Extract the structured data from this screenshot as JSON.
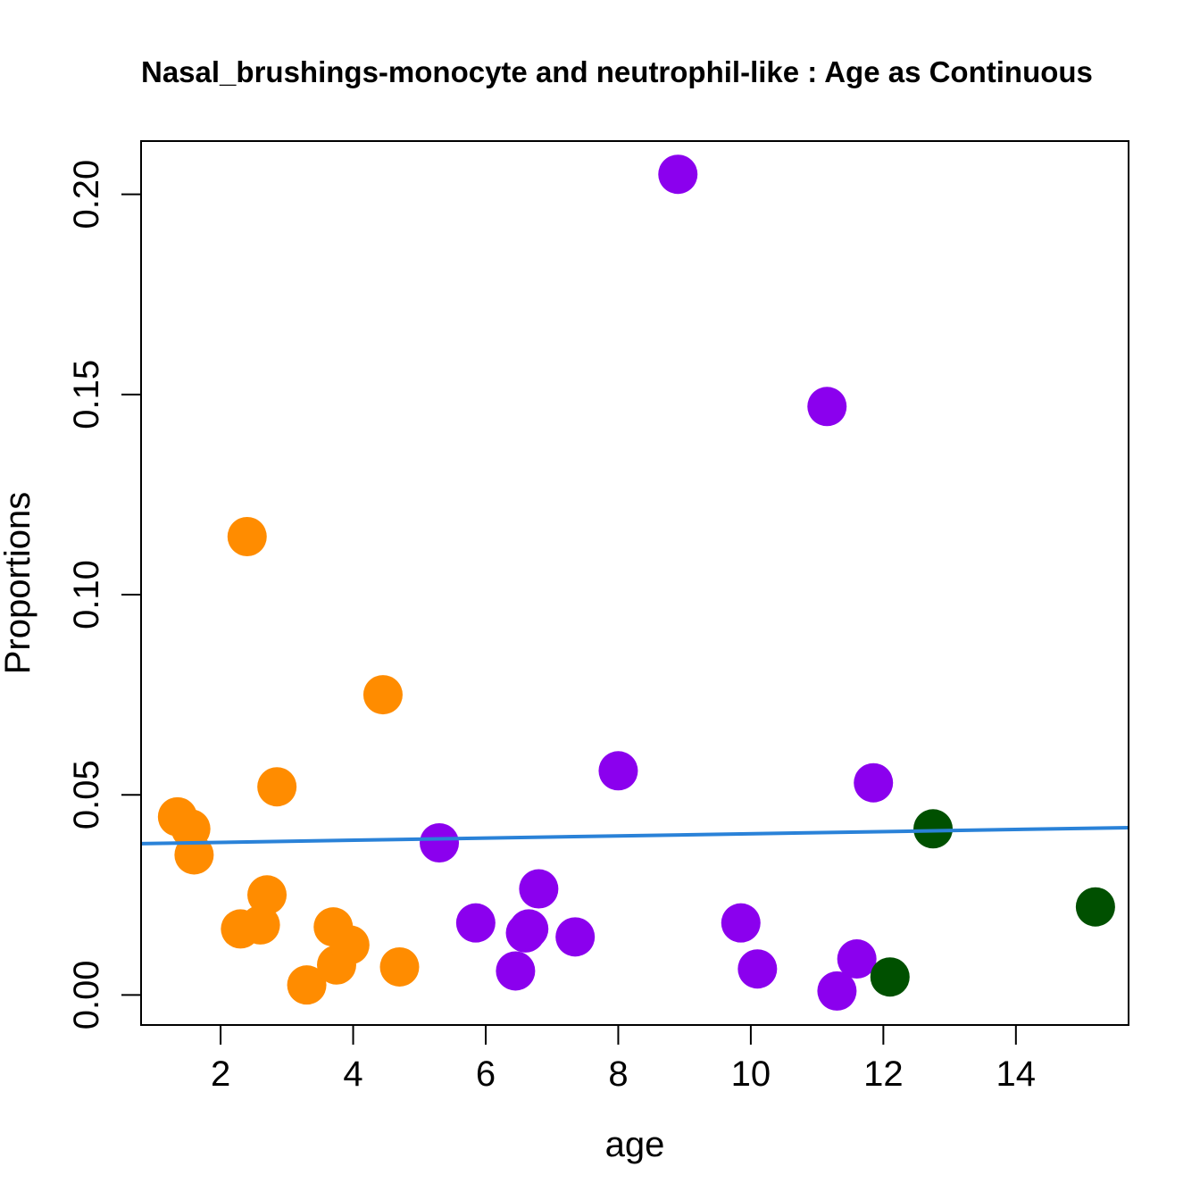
{
  "chart_data": {
    "type": "scatter",
    "title": "Nasal_brushings-monocyte and neutrophil-like : Age as Continuous",
    "xlabel": "age",
    "ylabel": "Proportions",
    "xlim": [
      0.8,
      15.7
    ],
    "ylim": [
      -0.0075,
      0.2133
    ],
    "x_ticks": [
      2,
      4,
      6,
      8,
      10,
      12,
      14
    ],
    "y_ticks": [
      0.0,
      0.05,
      0.1,
      0.15,
      0.2
    ],
    "x_tick_labels": [
      "2",
      "4",
      "6",
      "8",
      "10",
      "12",
      "14"
    ],
    "y_tick_labels": [
      "0.00",
      "0.05",
      "0.10",
      "0.15",
      "0.20"
    ],
    "grid": false,
    "legend": "none",
    "series": [
      {
        "color": "#ff8c00",
        "points": [
          [
            1.35,
            0.0445
          ],
          [
            1.55,
            0.0415
          ],
          [
            1.6,
            0.035
          ],
          [
            2.3,
            0.0165
          ],
          [
            2.4,
            0.1145
          ],
          [
            2.6,
            0.0175
          ],
          [
            2.7,
            0.025
          ],
          [
            2.85,
            0.052
          ],
          [
            3.3,
            0.0025
          ],
          [
            3.7,
            0.017
          ],
          [
            3.75,
            0.0075
          ],
          [
            3.95,
            0.0125
          ],
          [
            4.45,
            0.075
          ],
          [
            4.7,
            0.007
          ]
        ]
      },
      {
        "color": "#8b00ee",
        "points": [
          [
            5.3,
            0.038
          ],
          [
            5.85,
            0.018
          ],
          [
            6.45,
            0.006
          ],
          [
            6.6,
            0.0155
          ],
          [
            6.65,
            0.0165
          ],
          [
            6.8,
            0.0265
          ],
          [
            7.35,
            0.0145
          ],
          [
            8.0,
            0.056
          ],
          [
            8.9,
            0.205
          ],
          [
            9.85,
            0.018
          ],
          [
            10.1,
            0.0065
          ],
          [
            11.15,
            0.147
          ],
          [
            11.3,
            0.001
          ],
          [
            11.6,
            0.009
          ],
          [
            11.85,
            0.053
          ]
        ]
      },
      {
        "color": "#005000",
        "points": [
          [
            12.1,
            0.0045
          ],
          [
            12.75,
            0.0415
          ],
          [
            15.2,
            0.022
          ]
        ]
      }
    ],
    "fit_line": {
      "color": "#2a82d8",
      "x": [
        0.8,
        15.7
      ],
      "y": [
        0.0378,
        0.0418
      ]
    }
  }
}
